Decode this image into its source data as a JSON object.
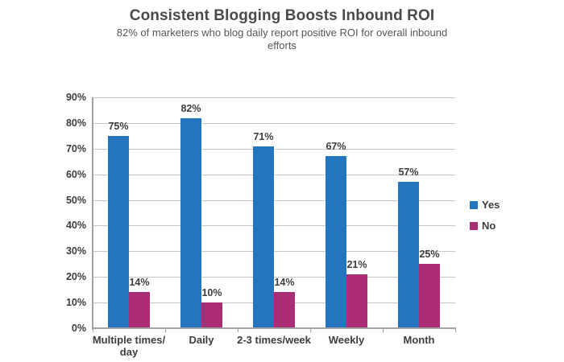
{
  "header": {
    "title": "Consistent Blogging Boosts Inbound ROI",
    "subtitle": "82% of marketers who blog daily report positive ROI for overall inbound efforts"
  },
  "chart_data": {
    "type": "bar",
    "categories": [
      "Multiple times/\nday",
      "Daily",
      "2-3 times/week",
      "Weekly",
      "Month"
    ],
    "series": [
      {
        "name": "Yes",
        "color": "#2375BD",
        "values": [
          75,
          82,
          71,
          67,
          57
        ]
      },
      {
        "name": "No",
        "color": "#AB2E74",
        "values": [
          14,
          10,
          14,
          21,
          25
        ]
      }
    ],
    "value_suffix": "%",
    "ylim": [
      0,
      90
    ],
    "ytick_step": 10,
    "ytick_labels": [
      "0%",
      "10%",
      "20%",
      "30%",
      "40%",
      "50%",
      "60%",
      "70%",
      "80%",
      "90%"
    ],
    "grid": true,
    "data_labels": true,
    "legend_position": "right",
    "colors": {
      "grid": "#c6c6c6",
      "axis": "#a2a2a2",
      "label_text": "#3d3d3d"
    }
  }
}
